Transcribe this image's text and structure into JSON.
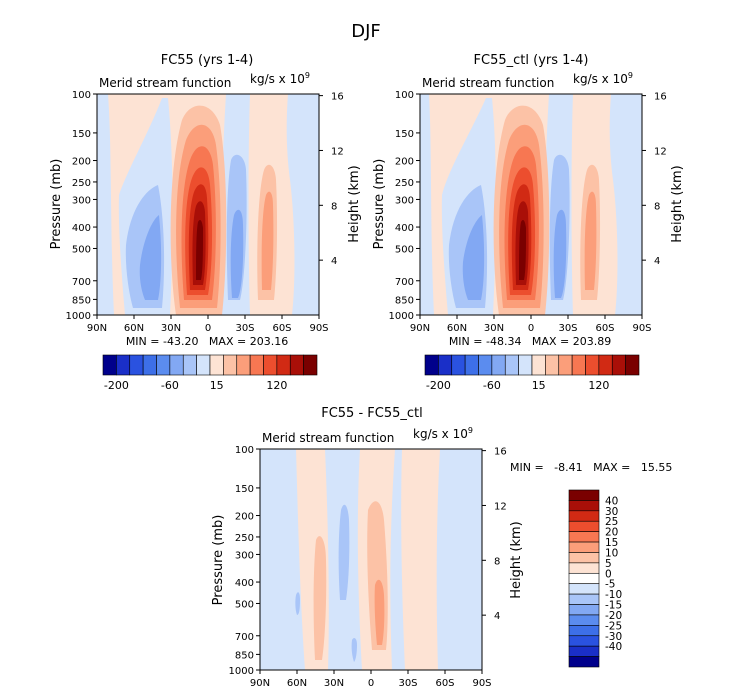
{
  "title": "DJF",
  "chart_data": [
    {
      "type": "contour",
      "title": "FC55 (yrs 1-4)",
      "left_label": "Merid stream function",
      "units": "kg/s x 10",
      "units_exp": "9",
      "xlabel": "",
      "ylabel": "Pressure (mb)",
      "y2label": "Height (km)",
      "x_ticks": [
        "90N",
        "60N",
        "30N",
        "0",
        "30S",
        "60S",
        "90S"
      ],
      "y_ticks": [
        "100",
        "150",
        "200",
        "250",
        "300",
        "400",
        "500",
        "700",
        "850",
        "1000"
      ],
      "y2_ticks": [
        "16",
        "12",
        "8",
        "4"
      ],
      "stats": "MIN = -43.20   MAX = 203.16",
      "colorbar_labels": [
        "-200",
        "-60",
        "15",
        "120"
      ]
    },
    {
      "type": "contour",
      "title": "FC55_ctl (yrs 1-4)",
      "left_label": "Merid stream function",
      "units": "kg/s x 10",
      "units_exp": "9",
      "xlabel": "",
      "ylabel": "Pressure (mb)",
      "y2label": "Height (km)",
      "x_ticks": [
        "90N",
        "60N",
        "30N",
        "0",
        "30S",
        "60S",
        "90S"
      ],
      "y_ticks": [
        "100",
        "150",
        "200",
        "250",
        "300",
        "400",
        "500",
        "700",
        "850",
        "1000"
      ],
      "y2_ticks": [
        "16",
        "12",
        "8",
        "4"
      ],
      "stats": "MIN = -48.34   MAX = 203.89",
      "colorbar_labels": [
        "-200",
        "-60",
        "15",
        "120"
      ]
    },
    {
      "type": "contour",
      "title": "FC55 - FC55_ctl",
      "left_label": "Merid stream function",
      "units": "kg/s x 10",
      "units_exp": "9",
      "xlabel": "",
      "ylabel": "Pressure (mb)",
      "y2label": "Height (km)",
      "x_ticks": [
        "90N",
        "60N",
        "30N",
        "0",
        "30S",
        "60S",
        "90S"
      ],
      "y_ticks": [
        "100",
        "150",
        "200",
        "250",
        "300",
        "400",
        "500",
        "700",
        "850",
        "1000"
      ],
      "y2_ticks": [
        "16",
        "12",
        "8",
        "4"
      ],
      "stats": "MIN =   -8.41   MAX =   15.55",
      "colorbar_labels": [
        "40",
        "30",
        "25",
        "20",
        "15",
        "10",
        "5",
        "0",
        "-5",
        "-10",
        "-15",
        "-20",
        "-25",
        "-30",
        "-40"
      ]
    }
  ],
  "palette": {
    "diverging_blue_red": [
      "#00008b",
      "#1a2fc8",
      "#2a52e0",
      "#3d6fe8",
      "#5b8cef",
      "#82a8f3",
      "#a9c5f8",
      "#d4e4fb",
      "#fde3d4",
      "#fcc2a6",
      "#fb9e7a",
      "#f77752",
      "#ec4e2e",
      "#d12a14",
      "#a90f08",
      "#7a0000"
    ],
    "diff_scale": [
      "#7a0000",
      "#a90f08",
      "#d12a14",
      "#ec4e2e",
      "#f77752",
      "#fb9e7a",
      "#fcc2a6",
      "#fde3d4",
      "#ffffff",
      "#d4e4fb",
      "#a9c5f8",
      "#82a8f3",
      "#5b8cef",
      "#3d6fe8",
      "#2a52e0",
      "#1a2fc8",
      "#00008b"
    ]
  }
}
